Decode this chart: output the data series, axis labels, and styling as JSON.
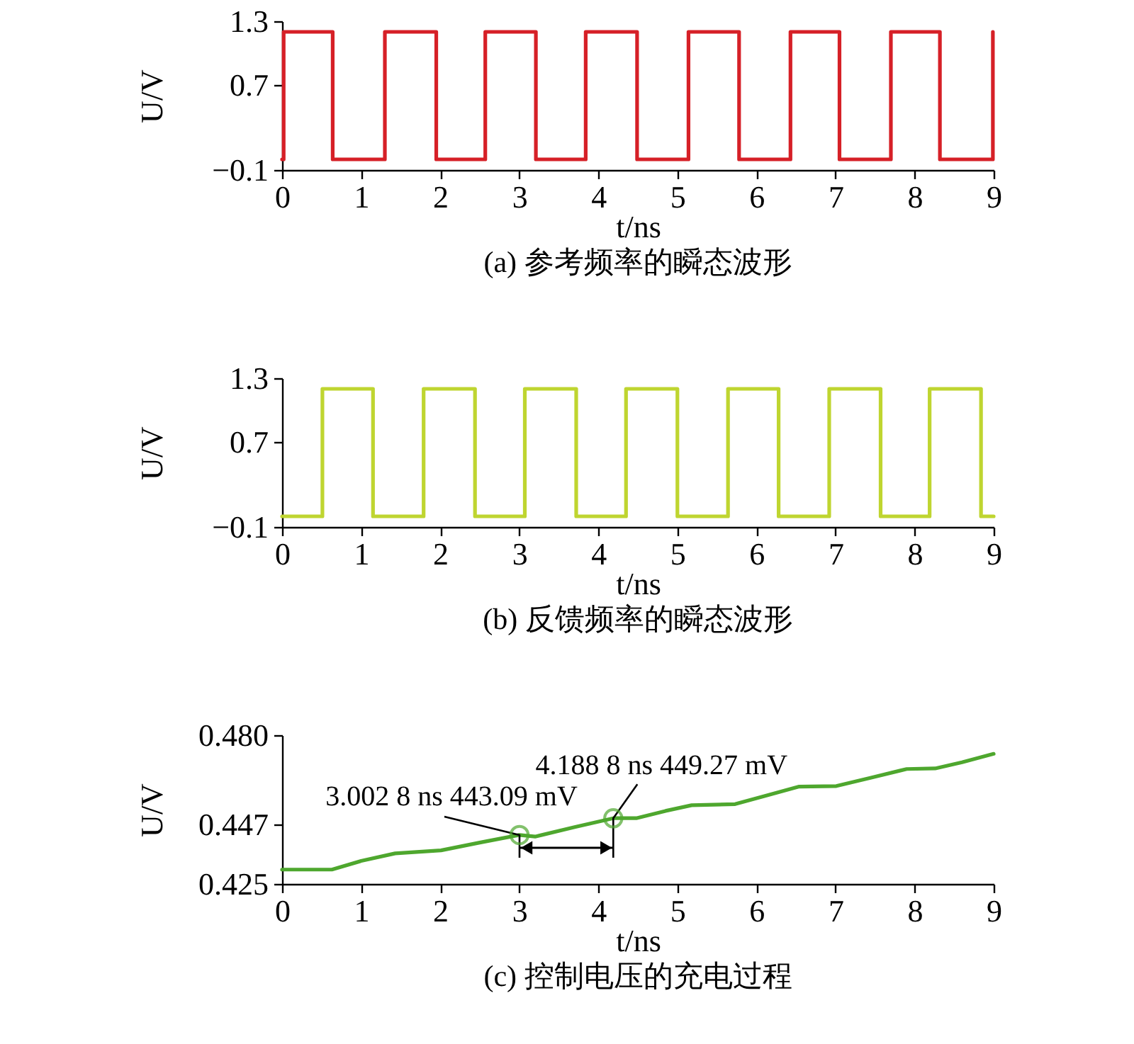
{
  "chart_data": [
    {
      "type": "step",
      "title": "(a) 参考频率的瞬态波形",
      "xlabel": "t/ns",
      "ylabel": "U/V",
      "color": "#d62027",
      "line_style": "solid",
      "x": [
        0,
        0.02,
        0.64,
        1.3,
        1.95,
        2.57,
        3.21,
        3.84,
        4.49,
        5.14,
        5.78,
        6.43,
        7.05,
        7.7,
        8.32,
        8.99
      ],
      "values": [
        0,
        1.2,
        0,
        1.2,
        0,
        1.2,
        0,
        1.2,
        0,
        1.2,
        0,
        1.2,
        0,
        1.2,
        0,
        1.2
      ],
      "xlim": [
        0,
        9
      ],
      "xticks": [
        0,
        1,
        2,
        3,
        4,
        5,
        6,
        7,
        8,
        9
      ],
      "ylim": [
        -0.1,
        1.3
      ],
      "yticks": [
        -0.1,
        0.7,
        1.3
      ]
    },
    {
      "type": "step",
      "title": "(b) 反馈频率的瞬态波形",
      "xlabel": "t/ns",
      "ylabel": "U/V",
      "color": "#bfd530",
      "line_style": "solid",
      "x": [
        0,
        0.51,
        1.15,
        1.79,
        2.44,
        3.07,
        3.72,
        4.35,
        5.0,
        5.64,
        6.28,
        6.92,
        7.57,
        8.19,
        8.84,
        9
      ],
      "values": [
        0,
        1.2,
        0,
        1.2,
        0,
        1.2,
        0,
        1.2,
        0,
        1.2,
        0,
        1.2,
        0,
        1.2,
        0,
        0
      ],
      "xlim": [
        0,
        9
      ],
      "xticks": [
        0,
        1,
        2,
        3,
        4,
        5,
        6,
        7,
        8,
        9
      ],
      "ylim": [
        -0.1,
        1.3
      ],
      "yticks": [
        -0.1,
        0.7,
        1.3
      ]
    },
    {
      "type": "line",
      "title": "(c) 控制电压的充电过程",
      "xlabel": "t/ns",
      "ylabel": "U/V",
      "color": "#4ea72e",
      "line_style": "solid",
      "x": [
        0,
        0.63,
        1.0,
        1.43,
        2.01,
        2.5,
        3.0,
        3.2,
        3.7,
        4.19,
        4.48,
        4.85,
        5.18,
        5.73,
        6.1,
        6.54,
        7.01,
        7.45,
        7.9,
        8.26,
        8.6,
        9.0
      ],
      "values": [
        0.4303,
        0.4303,
        0.4335,
        0.4363,
        0.4374,
        0.4403,
        0.4431,
        0.4425,
        0.446,
        0.4493,
        0.4493,
        0.452,
        0.4541,
        0.4545,
        0.4575,
        0.461,
        0.4612,
        0.4643,
        0.4675,
        0.4677,
        0.47,
        0.4731
      ],
      "xlim": [
        0,
        9
      ],
      "xticks": [
        0,
        1,
        2,
        3,
        4,
        5,
        6,
        7,
        8,
        9
      ],
      "ylim": [
        0.425,
        0.48
      ],
      "yticks": [
        0.425,
        0.447,
        {
          "value": 0.48,
          "label": "0.480"
        }
      ],
      "annotations": [
        {
          "text": "3.002 8 ns 443.09 mV",
          "x": 3.0028,
          "y": 0.44309
        },
        {
          "text": "4.188 8 ns 449.27 mV",
          "x": 4.1888,
          "y": 0.44927
        }
      ]
    }
  ]
}
